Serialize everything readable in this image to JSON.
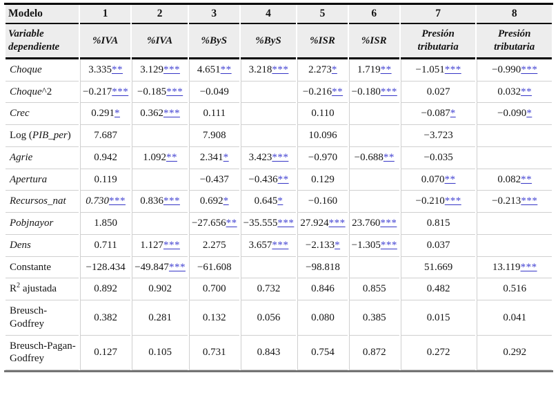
{
  "colors": {
    "star_link": "#4343d2",
    "header_background": "#ededed",
    "heavy_rule": "#000000",
    "bottom_rule": "#747474",
    "gridline": "#cfcfcf"
  },
  "table": {
    "header_row1": {
      "label": "Modelo",
      "cols": [
        "1",
        "2",
        "3",
        "4",
        "5",
        "6",
        "7",
        "8"
      ]
    },
    "header_row2": {
      "label": "Variable dependiente",
      "cols": [
        "%IVA",
        "%IVA",
        "%ByS",
        "%ByS",
        "%ISR",
        "%ISR",
        "Presión tributaria",
        "Presión tributaria"
      ]
    },
    "rows": [
      {
        "key": "choque",
        "label": [
          {
            "t": "Choque",
            "i": true
          }
        ],
        "cells": [
          {
            "v": "3.335",
            "s": "**"
          },
          {
            "v": "3.129",
            "s": "***"
          },
          {
            "v": "4.651",
            "s": "**"
          },
          {
            "v": "3.218",
            "s": "***"
          },
          {
            "v": "2.273",
            "s": "*"
          },
          {
            "v": "1.719",
            "s": "**"
          },
          {
            "v": "−1.051",
            "s": "***"
          },
          {
            "v": "−0.990",
            "s": "***"
          }
        ]
      },
      {
        "key": "choque-squared",
        "label": [
          {
            "t": "Choque",
            "i": true
          },
          {
            "t": "^2",
            "i": false
          }
        ],
        "cells": [
          {
            "v": "−0.217",
            "s": "***"
          },
          {
            "v": "−0.185",
            "s": "***"
          },
          {
            "v": "−0.049"
          },
          null,
          {
            "v": "−0.216",
            "s": "**"
          },
          {
            "v": "−0.180",
            "s": "***"
          },
          {
            "v": "0.027"
          },
          {
            "v": "0.032",
            "s": "**"
          }
        ]
      },
      {
        "key": "crec",
        "label": [
          {
            "t": "Crec",
            "i": true
          }
        ],
        "cells": [
          {
            "v": "0.291",
            "s": "*"
          },
          {
            "v": "0.362",
            "s": "***"
          },
          {
            "v": "0.111"
          },
          null,
          {
            "v": "0.110"
          },
          null,
          {
            "v": "−0.087",
            "s": "*"
          },
          {
            "v": "−0.090",
            "s": "*"
          }
        ]
      },
      {
        "key": "log-pib-per",
        "label": [
          {
            "t": "Log (",
            "i": false
          },
          {
            "t": "PIB_per",
            "i": true
          },
          {
            "t": ")",
            "i": false
          }
        ],
        "cells": [
          {
            "v": "7.687"
          },
          null,
          {
            "v": "7.908"
          },
          null,
          {
            "v": "10.096"
          },
          null,
          {
            "v": "−3.723"
          },
          null
        ]
      },
      {
        "key": "agrie",
        "label": [
          {
            "t": "Agrie",
            "i": true
          }
        ],
        "cells": [
          {
            "v": "0.942"
          },
          {
            "v": "1.092",
            "s": "**"
          },
          {
            "v": "2.341",
            "s": "*"
          },
          {
            "v": "3.423",
            "s": "***"
          },
          {
            "v": "−0.970"
          },
          {
            "v": "−0.688",
            "s": "**"
          },
          {
            "v": "−0.035"
          },
          null
        ]
      },
      {
        "key": "apertura",
        "label": [
          {
            "t": "Apertura",
            "i": true
          }
        ],
        "cells": [
          {
            "v": "0.119"
          },
          null,
          {
            "v": "−0.437"
          },
          {
            "v": "−0.436",
            "s": "**"
          },
          {
            "v": "0.129"
          },
          null,
          {
            "v": "0.070",
            "s": "**"
          },
          {
            "v": "0.082",
            "s": "**"
          }
        ]
      },
      {
        "key": "recursos-nat",
        "label": [
          {
            "t": "Recursos_nat",
            "i": true
          }
        ],
        "cells": [
          {
            "v": "0.730",
            "s": "***",
            "it": true
          },
          {
            "v": "0.836",
            "s": "***"
          },
          {
            "v": "0.692",
            "s": "*"
          },
          {
            "v": "0.645",
            "s": "*"
          },
          {
            "v": "−0.160"
          },
          null,
          {
            "v": "−0.210",
            "s": "***"
          },
          {
            "v": "−0.213",
            "s": "***"
          }
        ]
      },
      {
        "key": "pobjnayor",
        "label": [
          {
            "t": "Pobjnayor",
            "i": true
          }
        ],
        "cells": [
          {
            "v": "1.850"
          },
          null,
          {
            "v": "−27.656",
            "s": "**"
          },
          {
            "v": "−35.555",
            "s": "***"
          },
          {
            "v": "27.924",
            "s": "***"
          },
          {
            "v": "23.760",
            "s": "***"
          },
          {
            "v": "0.815"
          },
          null
        ]
      },
      {
        "key": "dens",
        "label": [
          {
            "t": "Dens",
            "i": true
          }
        ],
        "cells": [
          {
            "v": "0.711"
          },
          {
            "v": "1.127",
            "s": "***"
          },
          {
            "v": "2.275"
          },
          {
            "v": "3.657",
            "s": "***"
          },
          {
            "v": "−2.133",
            "s": "*"
          },
          {
            "v": "−1.305",
            "s": "***"
          },
          {
            "v": "0.037"
          },
          null
        ]
      },
      {
        "key": "constante",
        "label": [
          {
            "t": "Constante",
            "i": false
          }
        ],
        "cells": [
          {
            "v": "−128.434"
          },
          {
            "v": "−49.847",
            "s": "***"
          },
          {
            "v": "−61.608"
          },
          null,
          {
            "v": "−98.818"
          },
          null,
          {
            "v": "51.669"
          },
          {
            "v": "13.119",
            "s": "***"
          }
        ]
      },
      {
        "key": "r2-ajustada",
        "label": [
          {
            "t": "R",
            "i": false
          },
          {
            "t": "2",
            "sup": true
          },
          {
            "t": " ajustada",
            "i": false
          }
        ],
        "cells": [
          {
            "v": "0.892"
          },
          {
            "v": "0.902"
          },
          {
            "v": "0.700"
          },
          {
            "v": "0.732"
          },
          {
            "v": "0.846"
          },
          {
            "v": "0.855"
          },
          {
            "v": "0.482"
          },
          {
            "v": "0.516"
          }
        ]
      },
      {
        "key": "breusch-godfrey",
        "label": [
          {
            "t": "Breusch-Godfrey",
            "i": false
          }
        ],
        "cells": [
          {
            "v": "0.382"
          },
          {
            "v": "0.281"
          },
          {
            "v": "0.132"
          },
          {
            "v": "0.056"
          },
          {
            "v": "0.080"
          },
          {
            "v": "0.385"
          },
          {
            "v": "0.015"
          },
          {
            "v": "0.041"
          }
        ]
      },
      {
        "key": "breusch-pagan-godfrey",
        "label": [
          {
            "t": "Breusch-Pagan-Godfrey",
            "i": false
          }
        ],
        "cells": [
          {
            "v": "0.127"
          },
          {
            "v": "0.105"
          },
          {
            "v": "0.731"
          },
          {
            "v": "0.843"
          },
          {
            "v": "0.754"
          },
          {
            "v": "0.872"
          },
          {
            "v": "0.272"
          },
          {
            "v": "0.292"
          }
        ]
      }
    ]
  }
}
